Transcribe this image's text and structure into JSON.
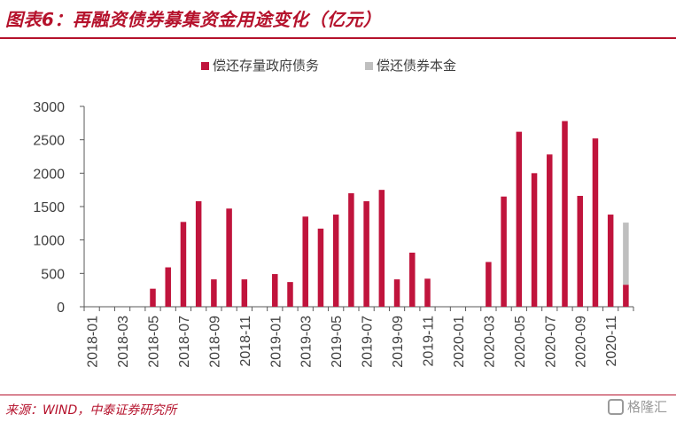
{
  "figure": {
    "title": "图表6：再融资债券募集资金用途变化（亿元）",
    "source": "来源：WIND，中泰证券研究所",
    "watermark": "格隆汇"
  },
  "colors": {
    "series1": "#c0143c",
    "series2": "#bfbfbf",
    "title": "#b5122c",
    "axis": "#595959"
  },
  "chart_data": {
    "type": "bar",
    "stacked": true,
    "categories": [
      "2018-01",
      "2018-02",
      "2018-03",
      "2018-04",
      "2018-05",
      "2018-06",
      "2018-07",
      "2018-08",
      "2018-09",
      "2018-10",
      "2018-11",
      "2018-12",
      "2019-01",
      "2019-02",
      "2019-03",
      "2019-04",
      "2019-05",
      "2019-06",
      "2019-07",
      "2019-08",
      "2019-09",
      "2019-10",
      "2019-11",
      "2019-12",
      "2020-01",
      "2020-02",
      "2020-03",
      "2020-04",
      "2020-05",
      "2020-06",
      "2020-07",
      "2020-08",
      "2020-09",
      "2020-10",
      "2020-11",
      "2020-12"
    ],
    "tick_labels": [
      "2018-01",
      "2018-03",
      "2018-05",
      "2018-07",
      "2018-09",
      "2018-11",
      "2019-01",
      "2019-03",
      "2019-05",
      "2019-07",
      "2019-09",
      "2019-11",
      "2020-01",
      "2020-03",
      "2020-05",
      "2020-07",
      "2020-09",
      "2020-11"
    ],
    "series": [
      {
        "name": "偿还存量政府债务",
        "values": [
          0,
          0,
          0,
          0,
          270,
          590,
          1270,
          1580,
          410,
          1470,
          410,
          0,
          490,
          370,
          1350,
          1170,
          1380,
          1700,
          1580,
          1750,
          410,
          810,
          420,
          0,
          0,
          0,
          670,
          1650,
          2620,
          2000,
          2280,
          2780,
          1660,
          2520,
          1380,
          330
        ]
      },
      {
        "name": "偿还债券本金",
        "values": [
          0,
          0,
          0,
          0,
          0,
          0,
          0,
          0,
          0,
          0,
          0,
          0,
          0,
          0,
          0,
          0,
          0,
          0,
          0,
          0,
          0,
          0,
          0,
          0,
          0,
          0,
          0,
          0,
          0,
          0,
          0,
          0,
          0,
          0,
          0,
          930
        ]
      }
    ],
    "ylim": [
      0,
      3000
    ],
    "yticks": [
      "0",
      "500",
      "1000",
      "1500",
      "2000",
      "2500",
      "3000"
    ],
    "legend": "top-center",
    "grid": false
  }
}
